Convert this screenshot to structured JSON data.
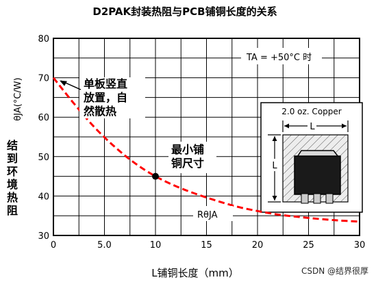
{
  "chart_data": {
    "type": "line",
    "title": "D2PAK封装热阻与PCB铺铜长度的关系",
    "xlabel": "L铺铜长度（mm）",
    "ylabel_symbol": "θJA(°C/W)",
    "ylabel_cn": "结到环境热阻",
    "xlim": [
      0,
      30
    ],
    "ylim": [
      30,
      80
    ],
    "xticks": [
      0,
      5,
      10,
      15,
      20,
      25,
      30
    ],
    "xtick_labels": [
      "0",
      "5.0",
      "10",
      "15",
      "20",
      "25",
      "30"
    ],
    "yticks": [
      30,
      40,
      50,
      60,
      70,
      80
    ],
    "ytick_labels": [
      "30",
      "40",
      "50",
      "60",
      "70",
      "80"
    ],
    "grid": true,
    "series": [
      {
        "name": "RθJA",
        "color": "#ff0000",
        "line_style": "dashed",
        "x": [
          0,
          2,
          4,
          6,
          8,
          10,
          12,
          14,
          16,
          18,
          20,
          22,
          24,
          26,
          28,
          30
        ],
        "y": [
          70,
          63.5,
          57.5,
          52.5,
          48.3,
          45,
          42.5,
          40.5,
          38.8,
          37.3,
          36.2,
          35.3,
          34.7,
          34.2,
          33.8,
          33.5
        ]
      }
    ],
    "annotations": {
      "condition": "TA = +50°C 时",
      "start_note": [
        "单板竖直",
        "放置，自",
        "然散热"
      ],
      "min_note": [
        "最小铺",
        "铜尺寸"
      ],
      "min_point": {
        "x": 10,
        "y": 45
      },
      "start_point": {
        "x": 0,
        "y": 70
      },
      "curve_label": "RθJA"
    },
    "inset": {
      "title": "2.0 oz. Copper",
      "dim_horizontal": "L",
      "dim_vertical": "L"
    }
  },
  "watermark": "CSDN @结界很厚",
  "colors": {
    "curve": "#ff0000",
    "grid": "#000000",
    "inset_bg": "#e8e8e8",
    "component": "#1a1a1a"
  }
}
